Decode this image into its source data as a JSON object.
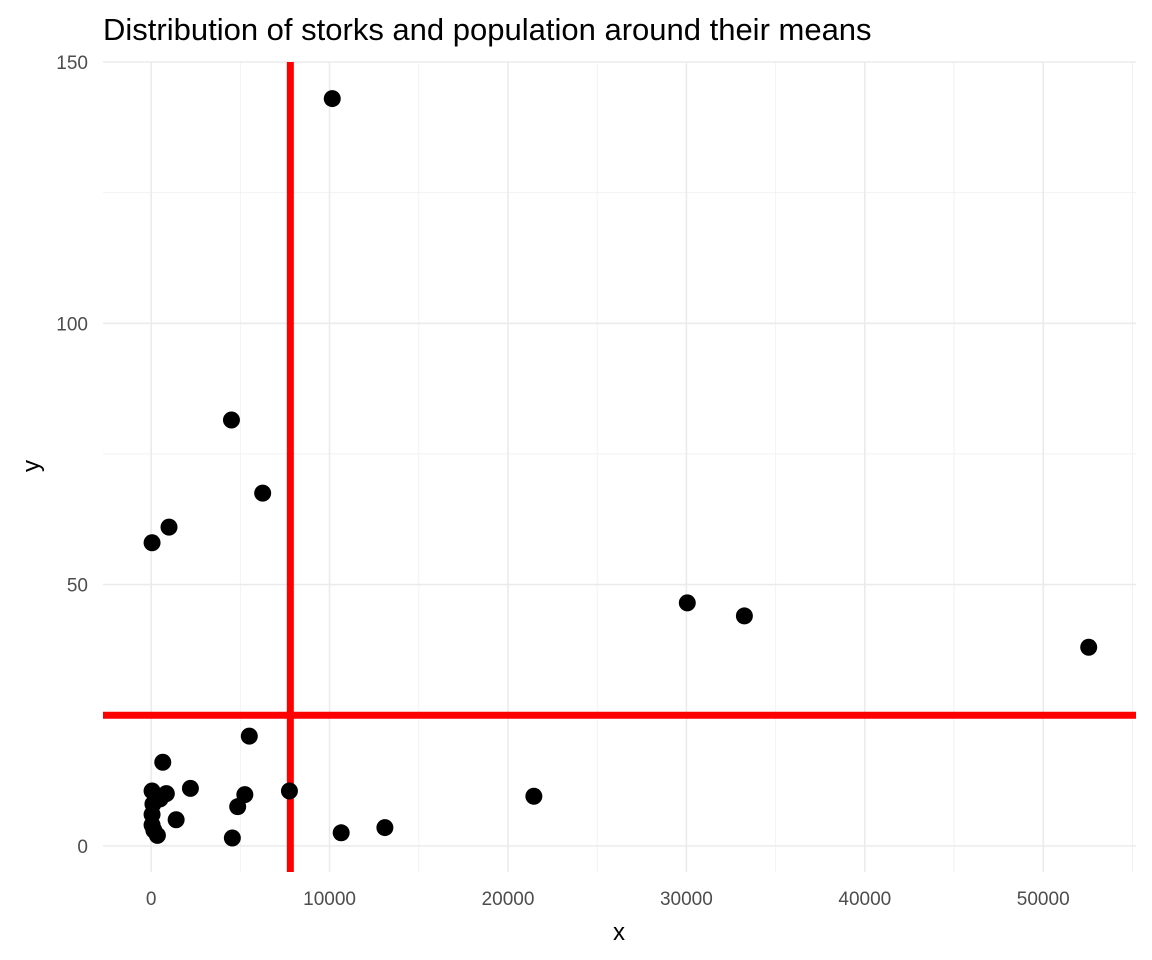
{
  "chart_data": {
    "type": "scatter",
    "title": "Distribution of storks and population around their means",
    "xlabel": "x",
    "ylabel": "y",
    "xlim": [
      -2700,
      55200
    ],
    "ylim": [
      -5,
      150
    ],
    "x_ticks": [
      0,
      10000,
      20000,
      30000,
      40000,
      50000
    ],
    "x_tick_labels": [
      "0",
      "10000",
      "20000",
      "30000",
      "40000",
      "50000"
    ],
    "y_ticks": [
      0,
      50,
      100,
      150
    ],
    "y_tick_labels": [
      "0",
      "50",
      "100",
      "150"
    ],
    "grid": true,
    "legend": "none",
    "point_color": "#000000",
    "mean_line_color": "#ff0000",
    "x_mean": 7800,
    "y_mean": 25,
    "points": [
      {
        "x": 10150,
        "y": 143
      },
      {
        "x": 4500,
        "y": 81.5
      },
      {
        "x": 6250,
        "y": 67.5
      },
      {
        "x": 1000,
        "y": 61
      },
      {
        "x": 50,
        "y": 58
      },
      {
        "x": 30050,
        "y": 46.5
      },
      {
        "x": 33250,
        "y": 44
      },
      {
        "x": 52550,
        "y": 38
      },
      {
        "x": 5500,
        "y": 21
      },
      {
        "x": 650,
        "y": 16
      },
      {
        "x": 2200,
        "y": 11
      },
      {
        "x": 7750,
        "y": 10.5
      },
      {
        "x": 21450,
        "y": 9.5
      },
      {
        "x": 5250,
        "y": 9.8
      },
      {
        "x": 850,
        "y": 10
      },
      {
        "x": 50,
        "y": 10.5
      },
      {
        "x": 500,
        "y": 9
      },
      {
        "x": 100,
        "y": 8
      },
      {
        "x": 4850,
        "y": 7.5
      },
      {
        "x": 50,
        "y": 6
      },
      {
        "x": 1400,
        "y": 5
      },
      {
        "x": 50,
        "y": 4
      },
      {
        "x": 150,
        "y": 3
      },
      {
        "x": 350,
        "y": 2
      },
      {
        "x": 13100,
        "y": 3.5
      },
      {
        "x": 10650,
        "y": 2.5
      },
      {
        "x": 4550,
        "y": 1.5
      }
    ]
  }
}
